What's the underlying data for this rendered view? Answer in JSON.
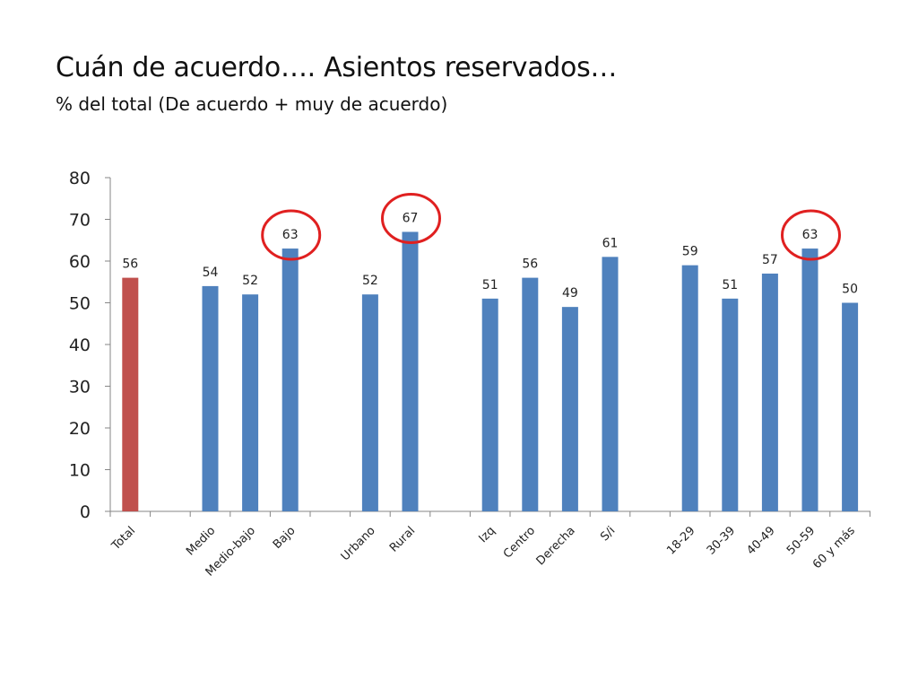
{
  "title": "Cuán de acuerdo…. Asientos reservados…",
  "subtitle": "% del total (De acuerdo + muy de acuerdo)",
  "chart_data": {
    "type": "bar",
    "title": "",
    "xlabel": "",
    "ylabel": "",
    "ylim": [
      0,
      80
    ],
    "yticks": [
      0,
      10,
      20,
      30,
      40,
      50,
      60,
      70,
      80
    ],
    "grid": false,
    "legend": "none",
    "categories": [
      "Total",
      "Medio",
      "Medio-bajo",
      "Bajo",
      "Urbano",
      "Rural",
      "Izq",
      "Centro",
      "Derecha",
      "S/i",
      "18-29",
      "30-39",
      "40-49",
      "50-59",
      "60 y más"
    ],
    "values": [
      56,
      54,
      52,
      63,
      52,
      67,
      51,
      56,
      49,
      61,
      59,
      51,
      57,
      63,
      50
    ],
    "colors": {
      "highlight": "#c0504d",
      "default": "#4f81bd",
      "circle": "#e02020"
    },
    "highlighted_categories": [
      "Total"
    ],
    "circled_categories": [
      "Bajo",
      "Rural",
      "50-59"
    ]
  }
}
